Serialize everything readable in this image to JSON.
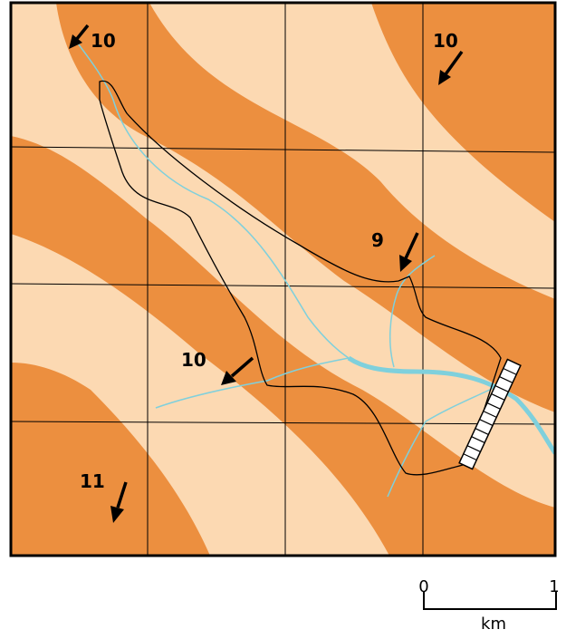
{
  "dip_labels": [
    "10",
    "10",
    "9",
    "10",
    "11"
  ],
  "scale": {
    "start": "0",
    "end": "1",
    "unit": "km"
  }
}
